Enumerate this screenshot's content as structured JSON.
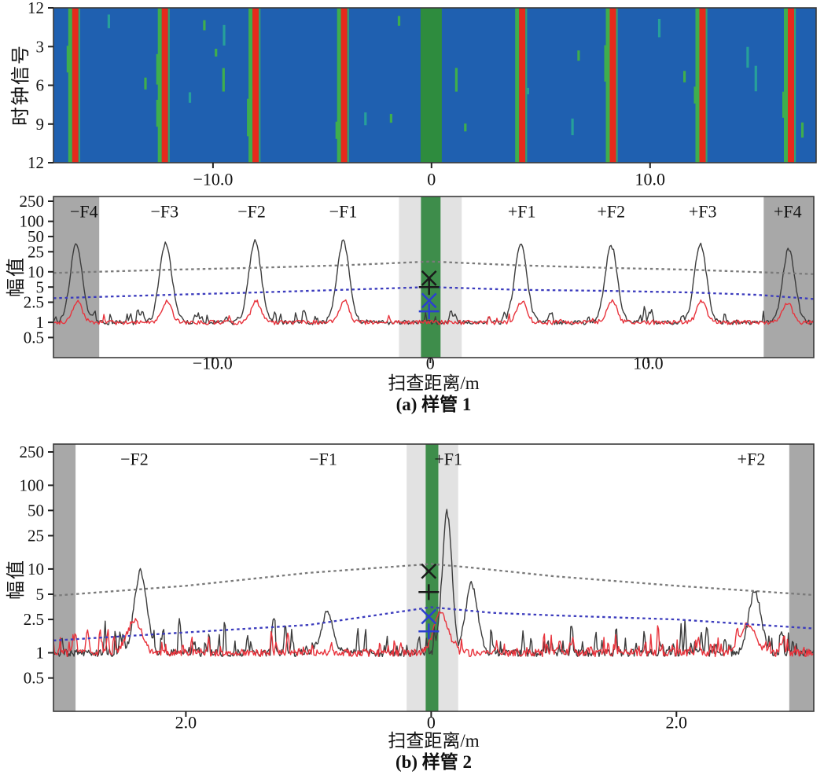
{
  "chart_data": [
    {
      "id": "bscan-heatmap",
      "type": "heatmap",
      "ylabel": "时钟信号",
      "ytick_labels": [
        "12",
        "3",
        "6",
        "9",
        "12"
      ],
      "xlim": [
        -17.3,
        17.6
      ],
      "xticks": [
        {
          "v": -10,
          "label": "−10.0"
        },
        {
          "v": 0,
          "label": "0"
        },
        {
          "v": 10,
          "label": "10.0"
        }
      ],
      "weld_band": {
        "from": -0.5,
        "to": 0.47
      },
      "flaw_stripes_m": [
        -16.3,
        -12.2,
        -8.05,
        -4.0,
        4.15,
        8.3,
        12.4,
        16.45
      ],
      "speckle_count": 24,
      "speckle_seed": 42,
      "colors": {
        "bg": "#1f60b0",
        "red": "#e62a1c",
        "green": "#3fae4d",
        "teal": "#27a09a",
        "weld": "#2e8c3e",
        "border": "#3a3a3a"
      }
    },
    {
      "id": "sample-tube-1",
      "type": "line",
      "yscale": "log",
      "caption": "(a) 样管 1",
      "xlabel": "扫查距离/m",
      "ylabel": "幅值",
      "ylim": [
        0.2,
        310
      ],
      "ytick_values": [
        250,
        100,
        50,
        25,
        10,
        5,
        2.5,
        1,
        0.5
      ],
      "ytick_labels": [
        "250",
        "100",
        "50",
        "25",
        "10",
        "5",
        "2.5",
        "1",
        "0.5"
      ],
      "xlim": [
        -17.3,
        17.6
      ],
      "xticks": [
        {
          "v": -10,
          "label": "−10.0"
        },
        {
          "v": 0,
          "label": "0"
        },
        {
          "v": 10,
          "label": "10.0"
        }
      ],
      "samples": 620,
      "flaw_labels": [
        {
          "text": "−F4",
          "x": -15.9
        },
        {
          "text": "−F3",
          "x": -12.2
        },
        {
          "text": "−F2",
          "x": -8.2
        },
        {
          "text": "−F1",
          "x": -4.0
        },
        {
          "text": "+F1",
          "x": 4.2
        },
        {
          "text": "+F2",
          "x": 8.3
        },
        {
          "text": "+F3",
          "x": 12.5
        },
        {
          "text": "+F4",
          "x": 16.4
        }
      ],
      "side_bands": [
        {
          "from": -17.3,
          "to": -15.2
        },
        {
          "from": 15.3,
          "to": 17.6
        }
      ],
      "light_band": {
        "from": -1.44,
        "to": 1.44
      },
      "weld_band": {
        "from": -0.43,
        "to": 0.47
      },
      "band_colors": {
        "side": "#a8a8a8",
        "light": "#e2e2e2",
        "weld": "#3e8d4b"
      },
      "series": [
        {
          "name": "black-curve",
          "color": "#3c3c3c",
          "seed": 7,
          "noise": [
            0.26,
            2.4
          ],
          "peak_w": 0.28,
          "peaks": [
            {
              "x": -16.25,
              "h": 35
            },
            {
              "x": -12.15,
              "h": 38
            },
            {
              "x": -8.05,
              "h": 42
            },
            {
              "x": -4.0,
              "h": 40
            },
            {
              "x": 4.15,
              "h": 35
            },
            {
              "x": 8.3,
              "h": 33
            },
            {
              "x": 12.4,
              "h": 35
            },
            {
              "x": 16.45,
              "h": 28
            }
          ]
        },
        {
          "name": "red-curve",
          "color": "#e8333c",
          "seed": 21,
          "noise": [
            0.25,
            1.7
          ],
          "peak_w": 0.22,
          "peaks": [
            {
              "x": -16.2,
              "h": 2.7
            },
            {
              "x": -12.1,
              "h": 2.6
            },
            {
              "x": -8.0,
              "h": 2.6
            },
            {
              "x": -3.95,
              "h": 2.7
            },
            {
              "x": 4.2,
              "h": 2.6
            },
            {
              "x": 8.35,
              "h": 2.8
            },
            {
              "x": 12.45,
              "h": 2.6
            },
            {
              "x": 16.4,
              "h": 2.5
            }
          ]
        }
      ],
      "thresholds": [
        {
          "name": "upper-threshold",
          "color": "#7a7a7a",
          "points": [
            [
              -17.3,
              9.5
            ],
            [
              -12,
              11
            ],
            [
              -8,
              12
            ],
            [
              -4,
              13.5
            ],
            [
              0,
              16
            ],
            [
              4,
              13.5
            ],
            [
              8,
              12
            ],
            [
              12,
              11
            ],
            [
              17.6,
              9
            ]
          ]
        },
        {
          "name": "lower-threshold",
          "color": "#3b3bbd",
          "points": [
            [
              -17.3,
              3.0
            ],
            [
              -12,
              3.5
            ],
            [
              -8,
              3.9
            ],
            [
              -4,
              4.4
            ],
            [
              0,
              5.0
            ],
            [
              4,
              4.4
            ],
            [
              8,
              4.2
            ],
            [
              12,
              3.9
            ],
            [
              15,
              3.5
            ],
            [
              17.6,
              2.9
            ]
          ]
        }
      ],
      "markers": [
        {
          "glyph": "x",
          "color": "#1a1a1a",
          "x": -0.06,
          "v": 7.5
        },
        {
          "glyph": "+",
          "color": "#1a1a1a",
          "x": -0.06,
          "v": 5.0
        },
        {
          "glyph": "x",
          "color": "#2b3fd0",
          "x": -0.06,
          "v": 2.7
        },
        {
          "glyph": "+",
          "color": "#2b3fd0",
          "x": -0.06,
          "v": 1.65
        }
      ]
    },
    {
      "id": "sample-tube-2",
      "type": "line",
      "yscale": "log",
      "caption": "(b) 样管 2",
      "xlabel": "扫查距离/m",
      "ylabel": "幅值",
      "ylim": [
        0.2,
        310
      ],
      "ytick_values": [
        250,
        100,
        50,
        25,
        10,
        5,
        2.5,
        1,
        0.5
      ],
      "ytick_labels": [
        "250",
        "100",
        "50",
        "25",
        "10",
        "5",
        "2.5",
        "1",
        "0.5"
      ],
      "xlim": [
        -3.08,
        3.12
      ],
      "xticks": [
        {
          "v": -2,
          "label": "2.0"
        },
        {
          "v": 0,
          "label": "0"
        },
        {
          "v": 2,
          "label": "2.0"
        }
      ],
      "samples": 780,
      "flaw_labels": [
        {
          "text": "−F2",
          "x": -2.42
        },
        {
          "text": "−F1",
          "x": -0.88
        },
        {
          "text": "+F1",
          "x": 0.14
        },
        {
          "text": "+F2",
          "x": 2.61
        }
      ],
      "side_bands": [
        {
          "from": -3.08,
          "to": -2.9
        },
        {
          "from": 2.92,
          "to": 3.12
        }
      ],
      "light_band": {
        "from": -0.2,
        "to": 0.22
      },
      "weld_band": {
        "from": -0.045,
        "to": 0.058
      },
      "band_colors": {
        "side": "#a8a8a8",
        "light": "#e2e2e2",
        "weld": "#3e8d4b"
      },
      "series": [
        {
          "name": "black-curve",
          "color": "#3c3c3c",
          "seed": 13,
          "noise": [
            0.26,
            2.9
          ],
          "peak_w": 0.05,
          "peaks": [
            {
              "x": -2.37,
              "h": 9.5
            },
            {
              "x": -0.85,
              "h": 2.9
            },
            {
              "x": 0.13,
              "h": 48,
              "w": 0.04
            },
            {
              "x": 0.33,
              "h": 6.5
            },
            {
              "x": 2.64,
              "h": 5.5
            }
          ]
        },
        {
          "name": "red-curve",
          "color": "#e8333c",
          "seed": 31,
          "noise": [
            0.26,
            2.5
          ],
          "peak_w": 0.06,
          "peaks": [
            {
              "x": -2.42,
              "h": 2.4
            },
            {
              "x": 0.08,
              "h": 3.0
            },
            {
              "x": 2.58,
              "h": 2.2
            }
          ]
        }
      ],
      "thresholds": [
        {
          "name": "upper-threshold",
          "color": "#7a7a7a",
          "points": [
            [
              -3.08,
              4.8
            ],
            [
              -2,
              6.3
            ],
            [
              -1,
              9
            ],
            [
              0,
              11.5
            ],
            [
              0.3,
              10.5
            ],
            [
              1,
              8.2
            ],
            [
              2,
              6.3
            ],
            [
              3.12,
              4.9
            ]
          ]
        },
        {
          "name": "lower-threshold",
          "color": "#3b3bbd",
          "points": [
            [
              -3.08,
              1.4
            ],
            [
              -2,
              1.75
            ],
            [
              -1,
              2.15
            ],
            [
              0,
              3.5
            ],
            [
              0.5,
              3.0
            ],
            [
              1,
              2.8
            ],
            [
              2,
              2.5
            ],
            [
              3.12,
              1.95
            ]
          ]
        }
      ],
      "markers": [
        {
          "glyph": "x",
          "color": "#1a1a1a",
          "x": -0.02,
          "v": 9.4
        },
        {
          "glyph": "+",
          "color": "#1a1a1a",
          "x": -0.02,
          "v": 5.3
        },
        {
          "glyph": "x",
          "color": "#2b3fd0",
          "x": -0.02,
          "v": 2.7
        },
        {
          "glyph": "+",
          "color": "#2b3fd0",
          "x": -0.02,
          "v": 1.8
        }
      ]
    }
  ]
}
